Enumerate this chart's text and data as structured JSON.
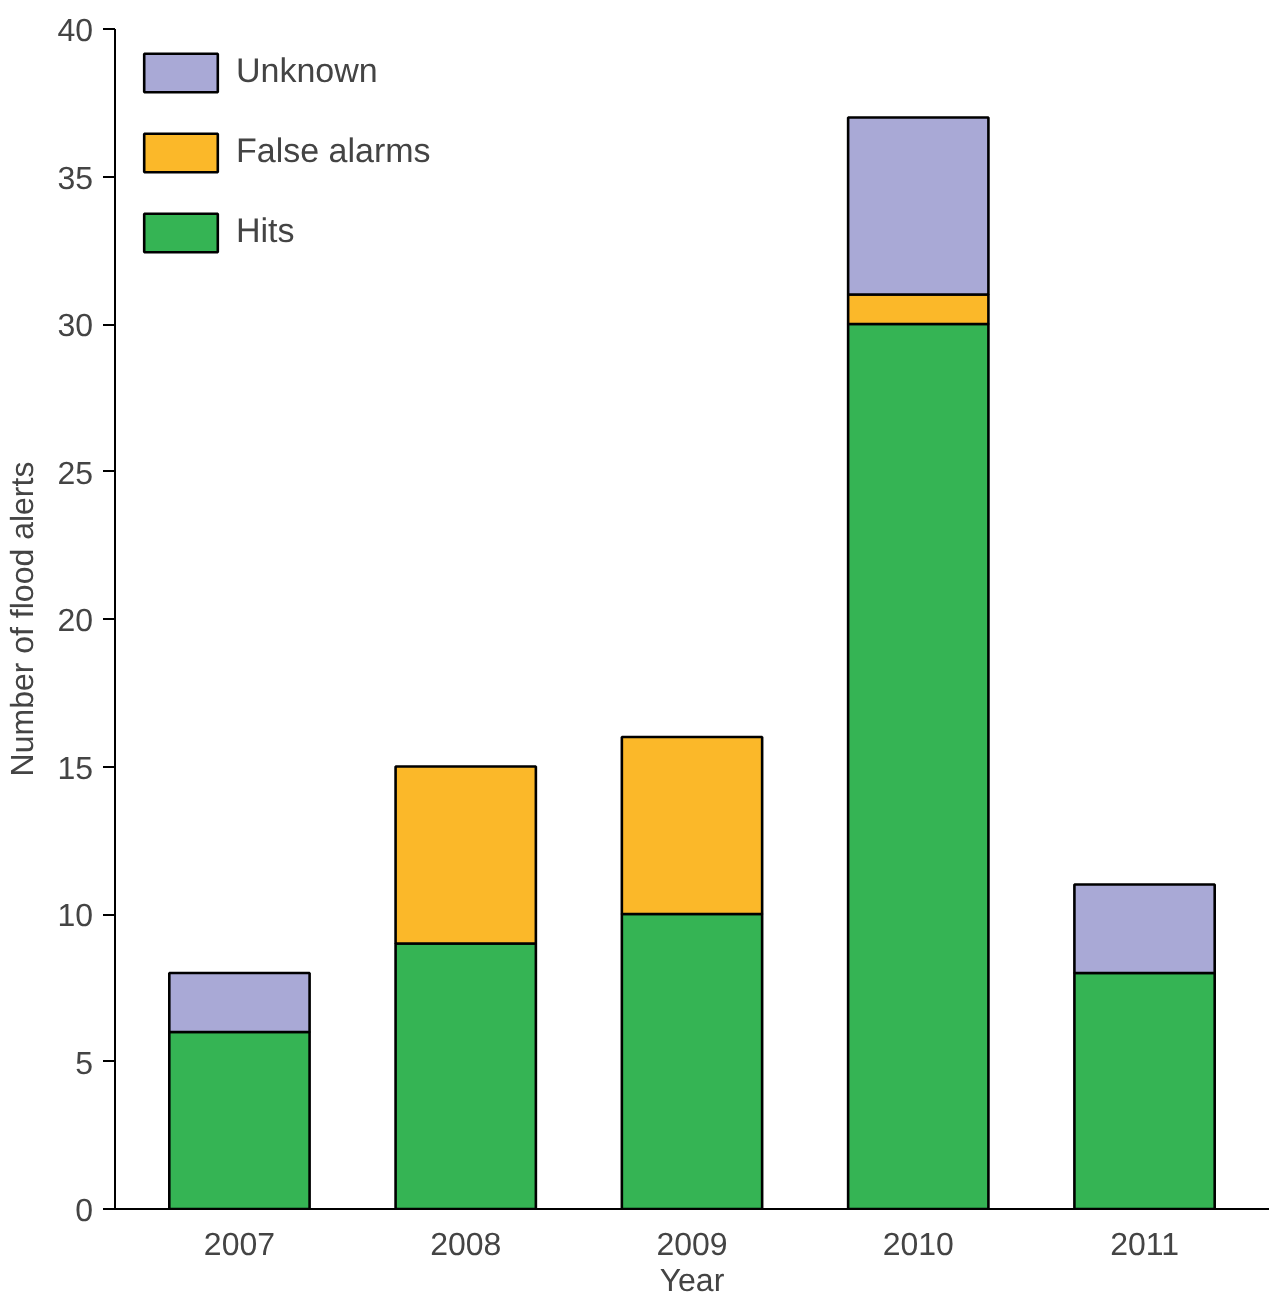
{
  "chart_data": {
    "type": "bar",
    "stacked": true,
    "xlabel": "Year",
    "ylabel": "Number of flood alerts",
    "categories": [
      "2007",
      "2008",
      "2009",
      "2010",
      "2011"
    ],
    "series": [
      {
        "name": "Hits",
        "color": "#35b454",
        "values": [
          6,
          9,
          10,
          30,
          8
        ]
      },
      {
        "name": "False alarms",
        "color": "#fbb829",
        "values": [
          null,
          6,
          6,
          1,
          null
        ]
      },
      {
        "name": "Unknown",
        "color": "#a9a9d6",
        "values": [
          2,
          null,
          null,
          6,
          3
        ]
      }
    ],
    "ylim": [
      0,
      40
    ],
    "yticks": [
      0,
      5,
      10,
      15,
      20,
      25,
      30,
      35,
      40
    ],
    "grid": false,
    "legend": "top left"
  }
}
